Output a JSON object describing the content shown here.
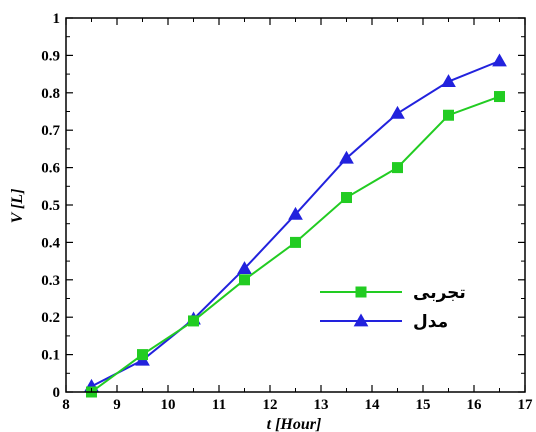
{
  "chart_data": {
    "type": "line",
    "xlabel": "t [Hour]",
    "ylabel": "V [L]",
    "xlim": [
      8,
      17
    ],
    "ylim": [
      0,
      1
    ],
    "xticks": [
      "8",
      "9",
      "10",
      "11",
      "12",
      "13",
      "14",
      "15",
      "16",
      "17"
    ],
    "yticks": [
      "0",
      "0.1",
      "0.2",
      "0.3",
      "0.4",
      "0.5",
      "0.6",
      "0.7",
      "0.8",
      "0.9",
      "1"
    ],
    "grid": false,
    "legend_position": "lower-right",
    "series": [
      {
        "name": "تجربی",
        "color": "#22cc22",
        "marker": "square",
        "x": [
          8.5,
          9.5,
          10.5,
          11.5,
          12.5,
          13.5,
          14.5,
          15.5,
          16.5
        ],
        "y": [
          0.0,
          0.1,
          0.19,
          0.3,
          0.4,
          0.52,
          0.6,
          0.74,
          0.79
        ]
      },
      {
        "name": "مدل",
        "color": "#2222dd",
        "marker": "triangle",
        "x": [
          8.5,
          9.5,
          10.5,
          11.5,
          12.5,
          13.5,
          14.5,
          15.5,
          16.5
        ],
        "y": [
          0.015,
          0.085,
          0.195,
          0.33,
          0.475,
          0.625,
          0.745,
          0.83,
          0.885
        ]
      }
    ]
  }
}
